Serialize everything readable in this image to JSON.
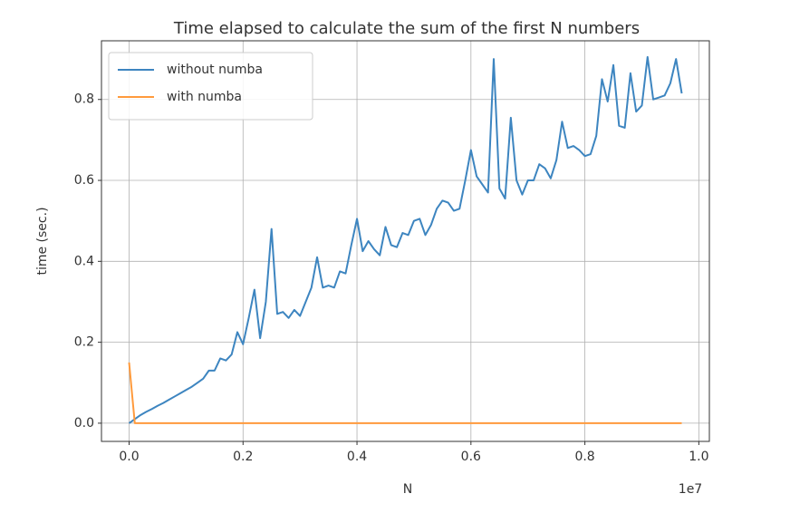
{
  "chart_data": {
    "type": "line",
    "title": "Time elapsed to calculate the sum of the first N numbers",
    "xlabel": "N",
    "ylabel": "time (sec.)",
    "x_offset_label": "1e7",
    "x": [
      0,
      100000,
      200000,
      300000,
      400000,
      500000,
      600000,
      700000,
      800000,
      900000,
      1000000,
      1100000,
      1200000,
      1300000,
      1400000,
      1500000,
      1600000,
      1700000,
      1800000,
      1900000,
      2000000,
      2100000,
      2200000,
      2300000,
      2400000,
      2500000,
      2600000,
      2700000,
      2800000,
      2900000,
      3000000,
      3100000,
      3200000,
      3300000,
      3400000,
      3500000,
      3600000,
      3700000,
      3800000,
      3900000,
      4000000,
      4100000,
      4200000,
      4300000,
      4400000,
      4500000,
      4600000,
      4700000,
      4800000,
      4900000,
      5000000,
      5100000,
      5200000,
      5300000,
      5400000,
      5500000,
      5600000,
      5700000,
      5800000,
      5900000,
      6000000,
      6100000,
      6200000,
      6300000,
      6400000,
      6500000,
      6600000,
      6700000,
      6800000,
      6900000,
      7000000,
      7100000,
      7200000,
      7300000,
      7400000,
      7500000,
      7600000,
      7700000,
      7800000,
      7900000,
      8000000,
      8100000,
      8200000,
      8300000,
      8400000,
      8500000,
      8600000,
      8700000,
      8800000,
      8900000,
      9000000,
      9100000,
      9200000,
      9300000,
      9400000,
      9500000,
      9600000,
      9700000
    ],
    "series": [
      {
        "name": "without numba",
        "color": "#3d85c0",
        "values": [
          0.0,
          0.01,
          0.02,
          0.028,
          0.035,
          0.043,
          0.05,
          0.058,
          0.066,
          0.074,
          0.082,
          0.09,
          0.1,
          0.11,
          0.13,
          0.13,
          0.16,
          0.155,
          0.17,
          0.225,
          0.195,
          0.26,
          0.33,
          0.21,
          0.3,
          0.48,
          0.27,
          0.275,
          0.26,
          0.28,
          0.265,
          0.3,
          0.335,
          0.41,
          0.335,
          0.34,
          0.335,
          0.375,
          0.37,
          0.44,
          0.505,
          0.425,
          0.45,
          0.43,
          0.415,
          0.485,
          0.44,
          0.435,
          0.47,
          0.465,
          0.5,
          0.505,
          0.465,
          0.49,
          0.53,
          0.55,
          0.545,
          0.525,
          0.53,
          0.6,
          0.675,
          0.61,
          0.59,
          0.57,
          0.9,
          0.58,
          0.555,
          0.755,
          0.6,
          0.565,
          0.6,
          0.6,
          0.64,
          0.63,
          0.605,
          0.65,
          0.745,
          0.68,
          0.685,
          0.675,
          0.66,
          0.665,
          0.71,
          0.85,
          0.795,
          0.885,
          0.735,
          0.73,
          0.865,
          0.77,
          0.785,
          0.905,
          0.8,
          0.805,
          0.81,
          0.84,
          0.9,
          0.815
        ]
      },
      {
        "name": "with numba",
        "color": "#ff9a3c",
        "values": [
          0.15,
          0,
          0,
          0,
          0,
          0,
          0,
          0,
          0,
          0,
          0,
          0,
          0,
          0,
          0,
          0,
          0,
          0,
          0,
          0,
          0,
          0,
          0,
          0,
          0,
          0,
          0,
          0,
          0,
          0,
          0,
          0,
          0,
          0,
          0,
          0,
          0,
          0,
          0,
          0,
          0,
          0,
          0,
          0,
          0,
          0,
          0,
          0,
          0,
          0,
          0,
          0,
          0,
          0,
          0,
          0,
          0,
          0,
          0,
          0,
          0,
          0,
          0,
          0,
          0,
          0,
          0,
          0,
          0,
          0,
          0,
          0,
          0,
          0,
          0,
          0,
          0,
          0,
          0,
          0,
          0,
          0,
          0,
          0,
          0,
          0,
          0,
          0,
          0,
          0,
          0,
          0,
          0,
          0,
          0,
          0,
          0,
          0
        ]
      }
    ],
    "xlim": [
      -485000,
      10185000
    ],
    "xticks": [
      {
        "value": 0,
        "label": "0.0"
      },
      {
        "value": 2000000,
        "label": "0.2"
      },
      {
        "value": 4000000,
        "label": "0.4"
      },
      {
        "value": 6000000,
        "label": "0.6"
      },
      {
        "value": 8000000,
        "label": "0.8"
      },
      {
        "value": 10000000,
        "label": "1.0"
      }
    ],
    "ylim": [
      -0.045,
      0.945
    ],
    "yticks": [
      {
        "value": 0,
        "label": "0.0"
      },
      0.2,
      0.4,
      0.6,
      0.8
    ],
    "grid": true,
    "legend": "upper left"
  }
}
